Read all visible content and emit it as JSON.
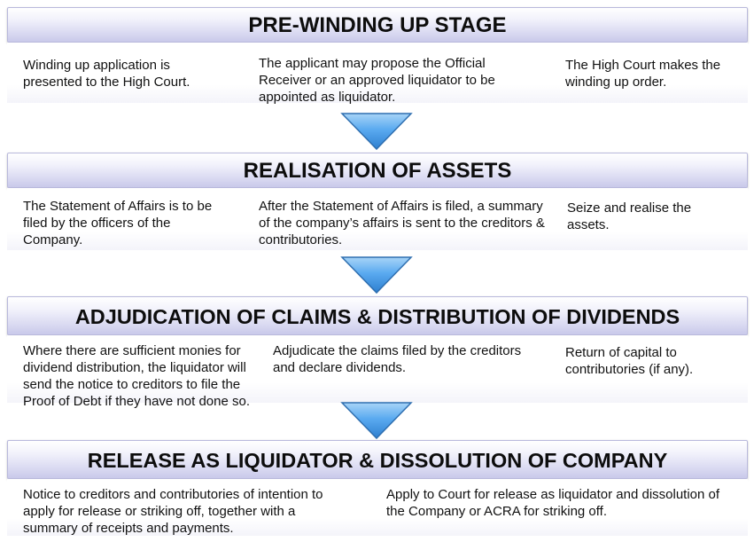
{
  "stages": [
    {
      "title": "PRE-WINDING UP STAGE",
      "cells": [
        "Winding up application is presented  to the High Court.",
        "The applicant may propose the Official Receiver or an approved liquidator to be appointed as liquidator.",
        "The High Court makes the winding up order."
      ]
    },
    {
      "title": "REALISATION OF ASSETS",
      "cells": [
        "The Statement of Affairs is to be filed by the officers of the Company.",
        "After the Statement of Affairs is filed, a summary of the company’s affairs is sent to the creditors & contributories.",
        "Seize and realise the assets."
      ]
    },
    {
      "title": "ADJUDICATION OF CLAIMS & DISTRIBUTION OF DIVIDENDS",
      "cells": [
        "Where there are sufficient monies for dividend distribution, the liquidator will send the notice to creditors to file the Proof of Debt if they have not done so.",
        "Adjudicate the claims filed by the creditors and declare dividends.",
        "Return of capital to contributories (if any)."
      ]
    },
    {
      "title": "RELEASE AS LIQUIDATOR & DISSOLUTION OF COMPANY",
      "cells": [
        "Notice to creditors and contributories of intention to apply for release or striking off, together with a summary of receipts and payments.",
        "Apply to Court  for release as liquidator and dissolution of the Company or ACRA for striking off."
      ]
    }
  ],
  "colors": {
    "header_fill": "#d9d9f1",
    "header_border": "#b9b9dc",
    "arrow_fill": "#4f9fe2",
    "arrow_stroke": "#2f6fb0"
  },
  "icons": [
    "down-arrow-icon"
  ]
}
